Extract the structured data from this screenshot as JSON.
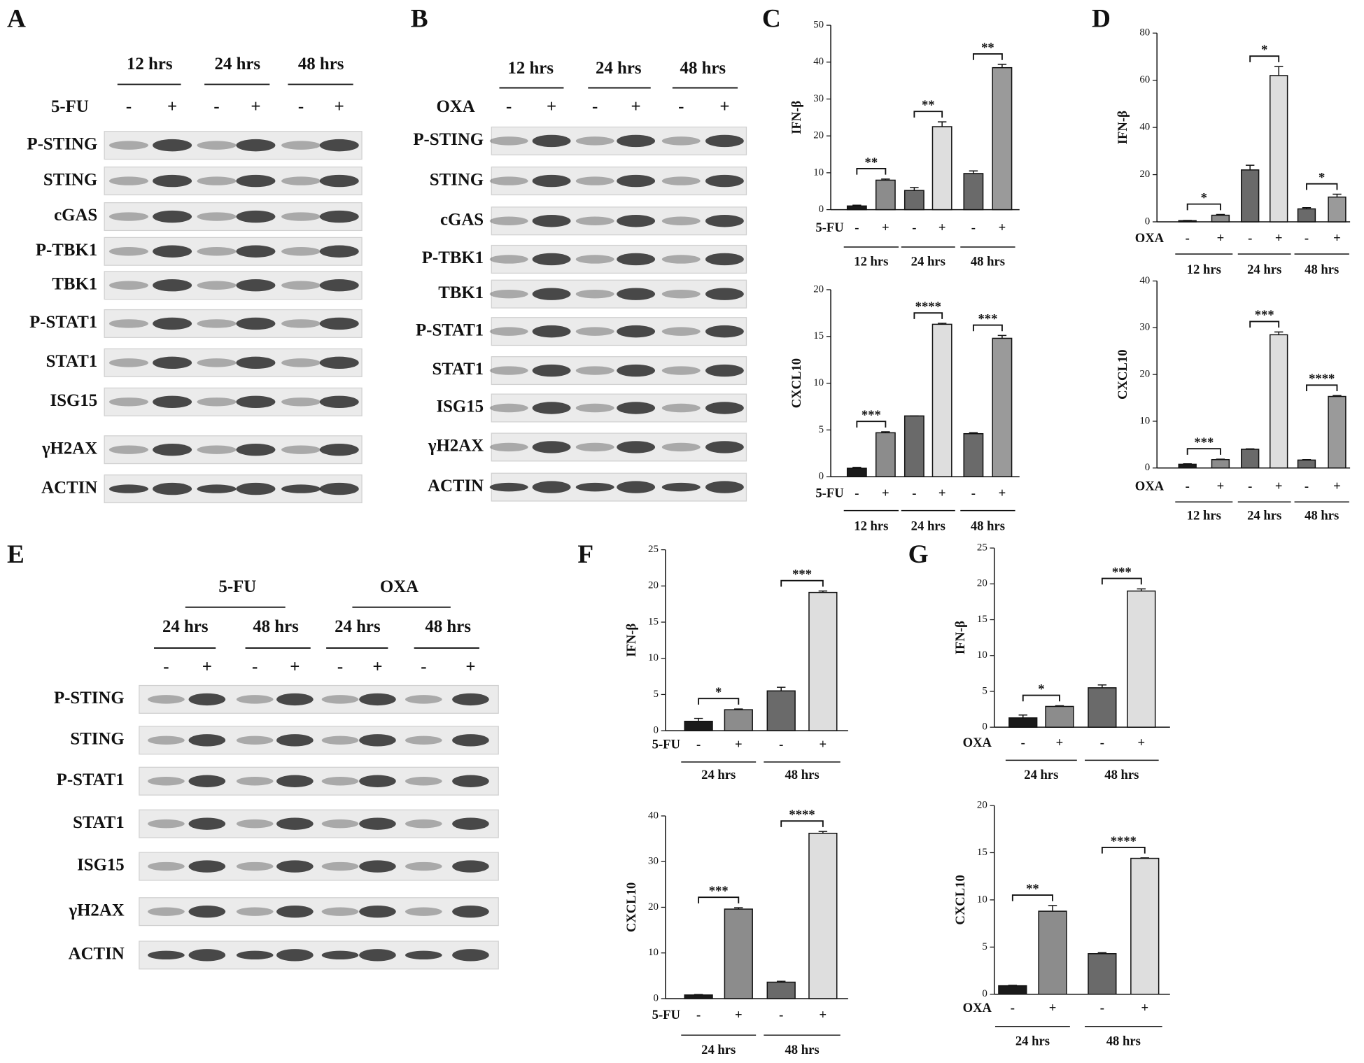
{
  "blots": [
    {
      "panel": "A",
      "treatment": "5-FU",
      "groups": [
        "12 hrs",
        "24 hrs",
        "48 hrs"
      ],
      "signs": [
        "-",
        "+",
        "-",
        "+",
        "-",
        "+"
      ],
      "proteins": [
        "P-STING",
        "STING",
        "cGAS",
        "P-TBK1",
        "TBK1",
        "P-STAT1",
        "STAT1",
        "ISG15",
        "γH2AX",
        "ACTIN"
      ]
    },
    {
      "panel": "B",
      "treatment": "OXA",
      "groups": [
        "12 hrs",
        "24 hrs",
        "48 hrs"
      ],
      "signs": [
        "-",
        "+",
        "-",
        "+",
        "-",
        "+"
      ],
      "proteins": [
        "P-STING",
        "STING",
        "cGAS",
        "P-TBK1",
        "TBK1",
        "P-STAT1",
        "STAT1",
        "ISG15",
        "γH2AX",
        "ACTIN"
      ]
    },
    {
      "panel": "E",
      "treatments": [
        "5-FU",
        "OXA"
      ],
      "groups": [
        "24 hrs",
        "48 hrs",
        "24 hrs",
        "48 hrs"
      ],
      "signs": [
        "-",
        "+",
        "-",
        "+",
        "-",
        "+",
        "-",
        "+"
      ],
      "proteins": [
        "P-STING",
        "STING",
        "P-STAT1",
        "STAT1",
        "ISG15",
        "γH2AX",
        "ACTIN"
      ]
    }
  ],
  "chart_data": [
    {
      "type": "bar",
      "panel": "C",
      "y_label": "IFN-β",
      "treatment": "5-FU",
      "groups": [
        "12 hrs",
        "24 hrs",
        "48 hrs"
      ],
      "signs": [
        "-",
        "+",
        "-",
        "+",
        "-",
        "+"
      ],
      "values": [
        1,
        8,
        5.2,
        22.5,
        9.8,
        38.5
      ],
      "errors": [
        0.2,
        0.3,
        0.8,
        1.3,
        0.7,
        0.9
      ],
      "significance": [
        "**",
        "**",
        "**"
      ],
      "colors": [
        "#1a1a1a",
        "#8c8c8c",
        "#6a6a6a",
        "#dedede",
        "#6a6a6a",
        "#9a9a9a"
      ],
      "ylim": [
        0,
        50
      ],
      "yticks": [
        0,
        10,
        20,
        30,
        40,
        50
      ]
    },
    {
      "type": "bar",
      "y_label": "CXCL10",
      "treatment": "5-FU",
      "groups": [
        "12 hrs",
        "24 hrs",
        "48 hrs"
      ],
      "signs": [
        "-",
        "+",
        "-",
        "+",
        "-",
        "+"
      ],
      "values": [
        0.9,
        4.7,
        6.5,
        16.3,
        4.6,
        14.8
      ],
      "errors": [
        0.1,
        0.1,
        0,
        0.1,
        0.1,
        0.3
      ],
      "significance": [
        "***",
        "****",
        "***"
      ],
      "colors": [
        "#1a1a1a",
        "#8c8c8c",
        "#6a6a6a",
        "#dedede",
        "#6a6a6a",
        "#9a9a9a"
      ],
      "ylim": [
        0,
        20
      ],
      "yticks": [
        0,
        5,
        10,
        15,
        20
      ]
    },
    {
      "type": "bar",
      "panel": "D",
      "y_label": "IFN-β",
      "treatment": "OXA",
      "groups": [
        "12 hrs",
        "24 hrs",
        "48 hrs"
      ],
      "signs": [
        "-",
        "+",
        "-",
        "+",
        "-",
        "+"
      ],
      "values": [
        0.5,
        2.8,
        22,
        62,
        5.5,
        10.5
      ],
      "errors": [
        0.1,
        0.3,
        2,
        3.8,
        0.5,
        1.2
      ],
      "significance": [
        "*",
        "*",
        "*"
      ],
      "colors": [
        "#1a1a1a",
        "#8c8c8c",
        "#6a6a6a",
        "#dedede",
        "#6a6a6a",
        "#9a9a9a"
      ],
      "ylim": [
        0,
        80
      ],
      "yticks": [
        0,
        20,
        40,
        60,
        80
      ]
    },
    {
      "type": "bar",
      "y_label": "CXCL10",
      "treatment": "OXA",
      "groups": [
        "12 hrs",
        "24 hrs",
        "48 hrs"
      ],
      "signs": [
        "-",
        "+",
        "-",
        "+",
        "-",
        "+"
      ],
      "values": [
        0.8,
        1.8,
        4,
        28.5,
        1.7,
        15.3
      ],
      "errors": [
        0.1,
        0.1,
        0.1,
        0.6,
        0.1,
        0.2
      ],
      "significance": [
        "***",
        "***",
        "****"
      ],
      "colors": [
        "#1a1a1a",
        "#8c8c8c",
        "#6a6a6a",
        "#dedede",
        "#6a6a6a",
        "#9a9a9a"
      ],
      "ylim": [
        0,
        40
      ],
      "yticks": [
        0,
        10,
        20,
        30,
        40
      ]
    },
    {
      "type": "bar",
      "panel": "F",
      "y_label": "IFN-β",
      "treatment": "5-FU",
      "groups": [
        "24 hrs",
        "48 hrs"
      ],
      "signs": [
        "-",
        "+",
        "-",
        "+"
      ],
      "values": [
        1.3,
        2.9,
        5.5,
        19.1
      ],
      "errors": [
        0.4,
        0.1,
        0.5,
        0.2
      ],
      "significance": [
        "*",
        "***"
      ],
      "colors": [
        "#1a1a1a",
        "#8c8c8c",
        "#6a6a6a",
        "#dedede"
      ],
      "ylim": [
        0,
        25
      ],
      "yticks": [
        0,
        5,
        10,
        15,
        20,
        25
      ]
    },
    {
      "type": "bar",
      "y_label": "CXCL10",
      "treatment": "5-FU",
      "groups": [
        "24 hrs",
        "48 hrs"
      ],
      "signs": [
        "-",
        "+",
        "-",
        "+"
      ],
      "values": [
        0.8,
        19.6,
        3.6,
        36.2
      ],
      "errors": [
        0.1,
        0.3,
        0.2,
        0.4
      ],
      "significance": [
        "***",
        "****"
      ],
      "colors": [
        "#1a1a1a",
        "#8c8c8c",
        "#6a6a6a",
        "#dedede"
      ],
      "ylim": [
        0,
        40
      ],
      "yticks": [
        0,
        10,
        20,
        30,
        40
      ]
    },
    {
      "type": "bar",
      "panel": "G",
      "y_label": "IFN-β",
      "treatment": "OXA",
      "groups": [
        "24 hrs",
        "48 hrs"
      ],
      "signs": [
        "-",
        "+",
        "-",
        "+"
      ],
      "values": [
        1.3,
        2.9,
        5.5,
        19.0
      ],
      "errors": [
        0.4,
        0.1,
        0.4,
        0.3
      ],
      "significance": [
        "*",
        "***"
      ],
      "colors": [
        "#1a1a1a",
        "#8c8c8c",
        "#6a6a6a",
        "#dedede"
      ],
      "ylim": [
        0,
        25
      ],
      "yticks": [
        0,
        5,
        10,
        15,
        20,
        25
      ]
    },
    {
      "type": "bar",
      "y_label": "CXCL10",
      "treatment": "OXA",
      "groups": [
        "24 hrs",
        "48 hrs"
      ],
      "signs": [
        "-",
        "+",
        "-",
        "+"
      ],
      "values": [
        0.9,
        8.8,
        4.3,
        14.4
      ],
      "errors": [
        0.05,
        0.6,
        0.1,
        0.05
      ],
      "significance": [
        "**",
        "****"
      ],
      "colors": [
        "#1a1a1a",
        "#8c8c8c",
        "#6a6a6a",
        "#dedede"
      ],
      "ylim": [
        0,
        20
      ],
      "yticks": [
        0,
        5,
        10,
        15,
        20
      ]
    }
  ]
}
